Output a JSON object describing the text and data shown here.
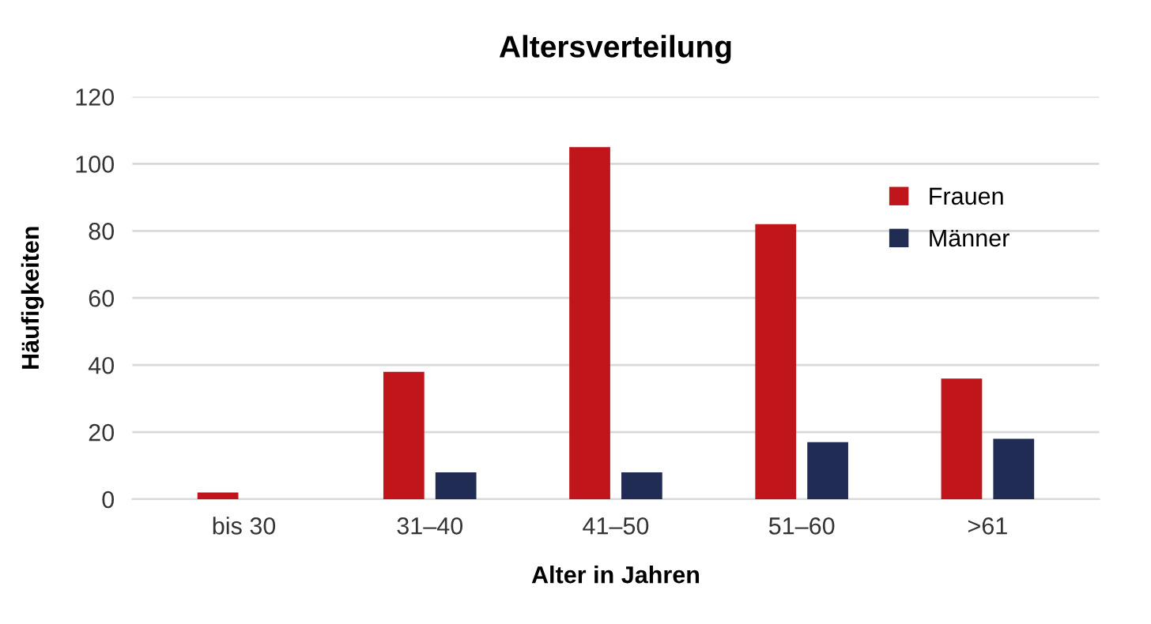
{
  "chart_data": {
    "type": "bar",
    "title": "Altersverteilung",
    "xlabel": "Alter in Jahren",
    "ylabel": "Häufigkeiten",
    "categories": [
      "bis 30",
      "31–40",
      "41–50",
      "51–60",
      ">61"
    ],
    "series": [
      {
        "name": "Frauen",
        "color": "#c0161b",
        "values": [
          2,
          38,
          105,
          82,
          36
        ]
      },
      {
        "name": "Männer",
        "color": "#212c54",
        "values": [
          0,
          8,
          8,
          17,
          18
        ]
      }
    ],
    "ylim": [
      0,
      120
    ],
    "yticks": [
      0,
      20,
      40,
      60,
      80,
      100,
      120
    ],
    "grid": "y",
    "legend": "top right"
  }
}
